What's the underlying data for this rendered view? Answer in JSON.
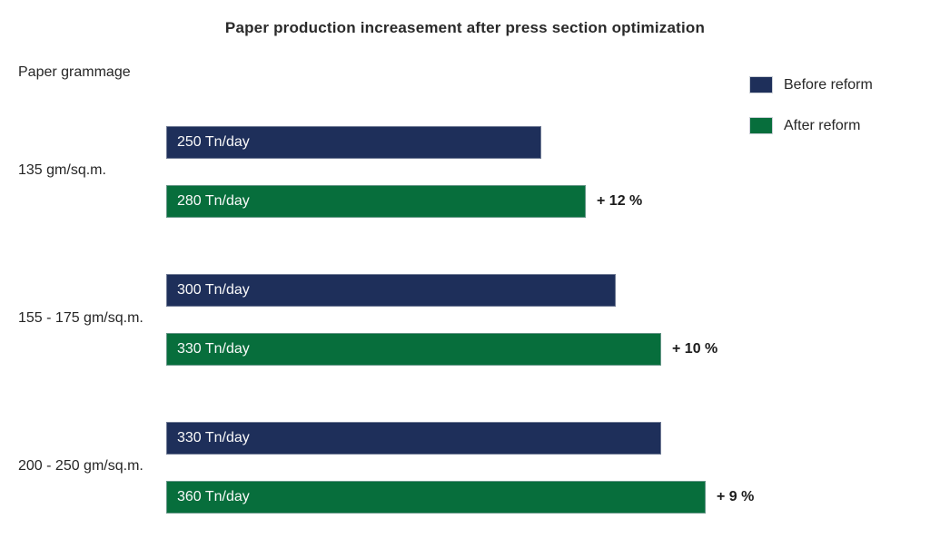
{
  "title": "Paper production increasement after press section optimization",
  "axis_title": "Paper grammage",
  "legend": {
    "items": [
      {
        "label": "Before reform",
        "color": "#1e2f5a"
      },
      {
        "label": "After reform",
        "color": "#076e3c"
      }
    ]
  },
  "chart_data": {
    "type": "bar",
    "orientation": "horizontal",
    "title": "Paper production increasement after press section optimization",
    "ylabel": "Paper grammage",
    "unit": "Tn/day",
    "xlim": [
      0,
      360
    ],
    "grid": false,
    "legend_position": "top-right",
    "categories": [
      "135 gm/sq.m.",
      "155 - 175 gm/sq.m.",
      "200 - 250 gm/sq.m."
    ],
    "series": [
      {
        "name": "Before reform",
        "color": "#1e2f5a",
        "values": [
          250,
          300,
          330
        ]
      },
      {
        "name": "After reform",
        "color": "#076e3c",
        "values": [
          280,
          330,
          360
        ]
      }
    ],
    "groups": [
      {
        "category": "135 gm/sq.m.",
        "before_value": 250,
        "before_label": "250 Tn/day",
        "after_value": 280,
        "after_label": "280 Tn/day",
        "increase": "+ 12 %"
      },
      {
        "category": "155 - 175 gm/sq.m.",
        "before_value": 300,
        "before_label": "300 Tn/day",
        "after_value": 330,
        "after_label": "330 Tn/day",
        "increase": "+ 10 %"
      },
      {
        "category": "200 - 250 gm/sq.m.",
        "before_value": 330,
        "before_label": "330 Tn/day",
        "after_value": 360,
        "after_label": "360 Tn/day",
        "increase": "+ 9 %"
      }
    ]
  }
}
